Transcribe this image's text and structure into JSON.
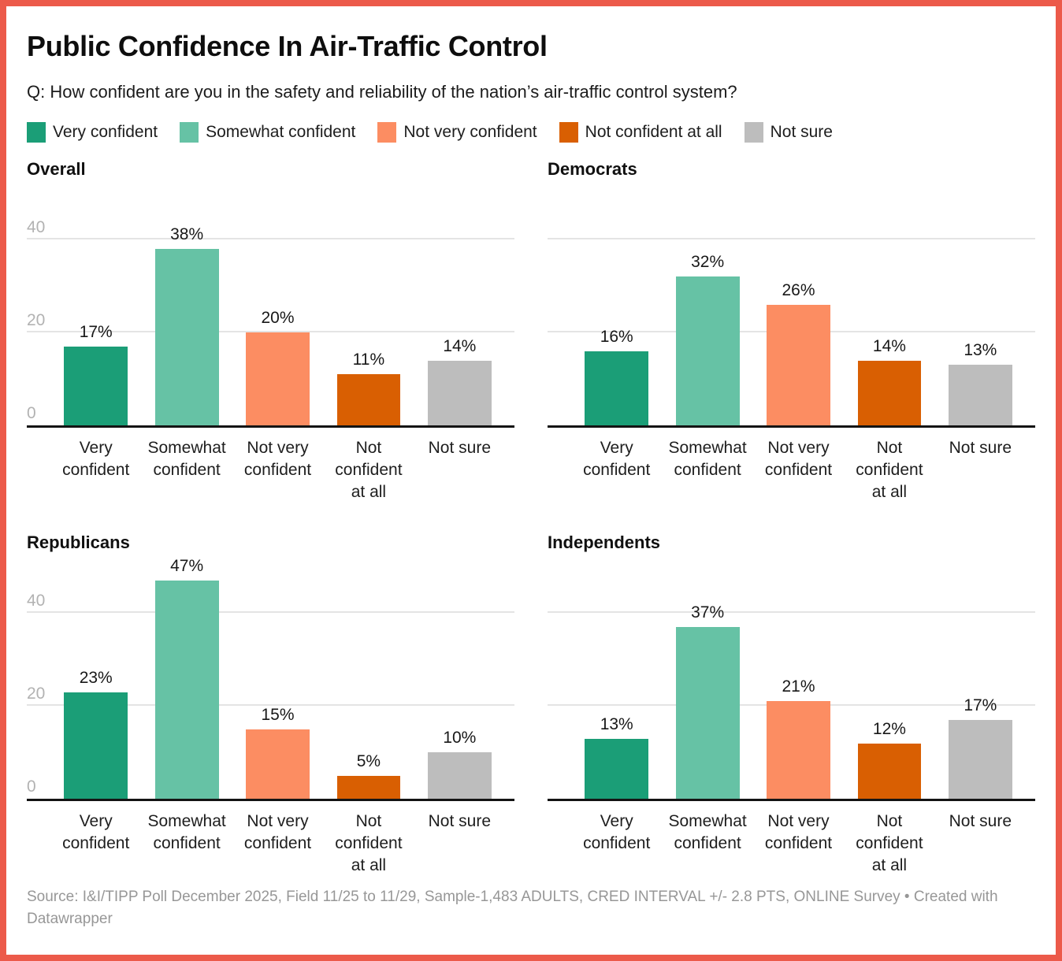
{
  "frame": {
    "border_color": "#ec5a4a",
    "background": "#ffffff"
  },
  "header": {
    "title": "Public Confidence In Air-Traffic Control",
    "subtitle": "Q: How confident are you in the safety and reliability of the nation’s air-traffic control system?"
  },
  "legend": {
    "items": [
      {
        "label": "Very confident",
        "color": "#1b9e77"
      },
      {
        "label": "Somewhat confident",
        "color": "#66c2a5"
      },
      {
        "label": "Not very confident",
        "color": "#fc8d62"
      },
      {
        "label": "Not confident at all",
        "color": "#d95f02"
      },
      {
        "label": "Not sure",
        "color": "#bdbdbd"
      }
    ]
  },
  "chart_data": {
    "type": "bar",
    "layout": "2x2 small multiples, shared categories, colors and y-scale; gridlines on; y tick labels only on left-column panels",
    "categories": [
      "Very confident",
      "Somewhat confident",
      "Not very confident",
      "Not confident at all",
      "Not sure"
    ],
    "category_label_lines": [
      [
        "Very",
        "confident"
      ],
      [
        "Somewhat",
        "confident"
      ],
      [
        "Not very",
        "confident"
      ],
      [
        "Not",
        "confident",
        "at all"
      ],
      [
        "Not sure"
      ]
    ],
    "colors": [
      "#1b9e77",
      "#66c2a5",
      "#fc8d62",
      "#d95f02",
      "#bdbdbd"
    ],
    "value_suffix": "%",
    "ylim": [
      0,
      48
    ],
    "yticks": [
      0,
      20,
      40
    ],
    "gridlines": [
      20,
      40
    ],
    "panels": [
      {
        "title": "Overall",
        "values": [
          17,
          38,
          20,
          11,
          14
        ],
        "show_ytick_labels": true
      },
      {
        "title": "Democrats",
        "values": [
          16,
          32,
          26,
          14,
          13
        ],
        "show_ytick_labels": false
      },
      {
        "title": "Republicans",
        "values": [
          23,
          47,
          15,
          5,
          10
        ],
        "show_ytick_labels": true
      },
      {
        "title": "Independents",
        "values": [
          13,
          37,
          21,
          12,
          17
        ],
        "show_ytick_labels": false
      }
    ]
  },
  "footer": {
    "text": "Source: I&I/TIPP Poll December 2025, Field 11/25 to 11/29, Sample-1,483 ADULTS, CRED INTERVAL +/- 2.8 PTS, ONLINE Survey • Created with Datawrapper"
  }
}
